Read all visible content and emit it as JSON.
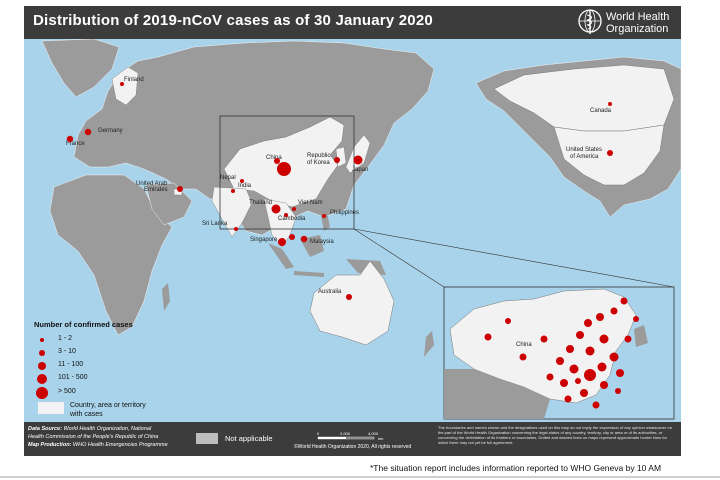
{
  "title": "Distribution of 2019-nCoV cases as of 30 January 2020",
  "logo": {
    "name": "world-health-organization-logo",
    "line1": "World Health",
    "line2": "Organization"
  },
  "countries": [
    {
      "name": "Finland",
      "cases": "1 - 2"
    },
    {
      "name": "Germany",
      "cases": "3 - 10"
    },
    {
      "name": "France",
      "cases": "3 - 10"
    },
    {
      "name": "United Arab Emirates",
      "cases": "3 - 10"
    },
    {
      "name": "Sri Lanka",
      "cases": "1 - 2"
    },
    {
      "name": "Nepal",
      "cases": "1 - 2"
    },
    {
      "name": "India",
      "cases": "1 - 2"
    },
    {
      "name": "China",
      "cases": "> 500"
    },
    {
      "name": "Republic of Korea",
      "cases": "3 - 10"
    },
    {
      "name": "Japan",
      "cases": "11 - 100"
    },
    {
      "name": "Thailand",
      "cases": "11 - 100"
    },
    {
      "name": "Viet Nam",
      "cases": "1 - 2"
    },
    {
      "name": "Cambodia",
      "cases": "1 - 2"
    },
    {
      "name": "Philippines",
      "cases": "1 - 2"
    },
    {
      "name": "Singapore",
      "cases": "11 - 100"
    },
    {
      "name": "Malaysia",
      "cases": "3 - 10"
    },
    {
      "name": "Australia",
      "cases": "3 - 10"
    },
    {
      "name": "Canada",
      "cases": "1 - 2"
    },
    {
      "name": "United States of America",
      "cases": "3 - 10"
    }
  ],
  "labels": {
    "finland": "Finland",
    "germany": "Germany",
    "france": "France",
    "uae1": "United Arab",
    "uae2": "Emirates",
    "srilanka": "Sri Lanka",
    "nepal": "Nepal",
    "india": "India",
    "china": "China",
    "korea1": "Republic",
    "korea2": "of Korea",
    "japan": "Japan",
    "thailand": "Thailand",
    "vietnam": "Viet Nam",
    "cambodia": "Cambodia",
    "philippines": "Philippines",
    "singapore": "Singapore",
    "malaysia": "Malaysia",
    "australia": "Australia",
    "canada": "Canada",
    "usa1": "United States",
    "usa2": "of America",
    "inset_china": "China"
  },
  "legend": {
    "title": "Number of confirmed cases",
    "classes": [
      "1 - 2",
      "3 - 10",
      "11 - 100",
      "101 - 500",
      "> 500"
    ],
    "territory1": "Country, area or territory",
    "territory2": "with cases"
  },
  "footer": {
    "data_source_label": "Data Source:",
    "data_source_1": "World Health Organization, National",
    "data_source_2": "Health Commission of the People's Republic of China",
    "production_label": "Map Production:",
    "production": "WHO Health Emergencies Programme",
    "not_applicable": "Not applicable",
    "scale_0": "0",
    "scale_1": "2,000",
    "scale_2": "4,000",
    "scale_unit": "km",
    "copyright": "©World Health Organization 2020, All rights reserved",
    "disclaimer": "The boundaries and names shown and the designations used on this map do not imply the expression of any opinion whatsoever on the part of the World Health Organization concerning the legal status of any country, territory, city or area or of its authorities, or concerning the delimitation of its frontiers or boundaries. Dotted and dashed lines on maps represent approximate border lines for which there may not yet be full agreement."
  },
  "note": "*The situation report includes information reported to WHO Geneva by 10 AM",
  "colors": {
    "case_dot": "#cc0000",
    "water": "#a9d3ea",
    "land": "#9b9b9b",
    "affected_land": "#f2f2f2",
    "header": "#3c3c3c"
  }
}
